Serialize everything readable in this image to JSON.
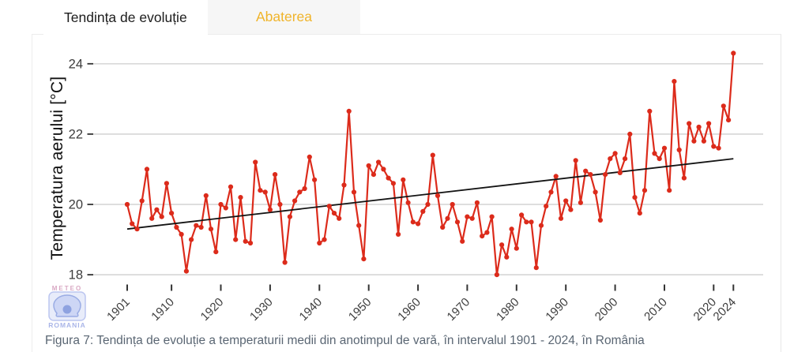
{
  "tabs": [
    {
      "label": "Tendința de evoluție",
      "active": true
    },
    {
      "label": "Abaterea",
      "active": false
    }
  ],
  "caption": {
    "text": "Figura 7: Tendința de evoluție a temperaturii medii din anotimpul de vară, în intervalul 1901 - 2024, în România"
  },
  "logo": {
    "top": "METEO",
    "bottom": "ROMANIA"
  },
  "colors": {
    "series": "#dc2b1b",
    "trend": "#141414",
    "gridline": "#d9d9d9",
    "tick": "#333333",
    "tick_label": "#3d3d3d",
    "tab_active_text": "#1c1c1c",
    "tab_inactive_text": "#f0b42a",
    "caption_text": "#5a6673"
  },
  "chart_data": {
    "type": "line",
    "title": "",
    "xlabel": "",
    "ylabel": "Temperatura aerului [°C]",
    "grid": "horizontal",
    "legend": "none",
    "xlim": [
      1901,
      2024
    ],
    "ylim": [
      17.7,
      24.4
    ],
    "x_ticks": [
      1901,
      1910,
      1920,
      1930,
      1940,
      1950,
      1960,
      1970,
      1980,
      1990,
      2000,
      2010,
      2020,
      2024
    ],
    "y_ticks": [
      18,
      20,
      22,
      24
    ],
    "start_year": 1901,
    "values": [
      20.0,
      19.45,
      19.3,
      20.1,
      21.0,
      19.6,
      19.85,
      19.65,
      20.6,
      19.75,
      19.35,
      19.15,
      18.1,
      19.0,
      19.4,
      19.35,
      20.25,
      19.3,
      18.65,
      20.0,
      19.9,
      20.5,
      19.0,
      20.2,
      18.95,
      18.9,
      21.2,
      20.4,
      20.35,
      19.85,
      20.85,
      20.0,
      18.35,
      19.65,
      20.1,
      20.35,
      20.45,
      21.35,
      20.7,
      18.9,
      19.0,
      19.95,
      19.75,
      19.6,
      20.55,
      22.65,
      20.35,
      19.4,
      18.45,
      21.1,
      20.85,
      21.2,
      21.0,
      20.75,
      20.6,
      19.15,
      20.7,
      20.05,
      19.5,
      19.45,
      19.8,
      20.0,
      21.4,
      20.25,
      19.35,
      19.6,
      20.0,
      19.5,
      18.95,
      19.65,
      19.6,
      20.05,
      19.1,
      19.2,
      19.65,
      18.0,
      18.85,
      18.5,
      19.3,
      18.75,
      19.7,
      19.5,
      19.5,
      18.2,
      19.4,
      19.95,
      20.35,
      20.8,
      19.6,
      20.1,
      19.85,
      21.25,
      20.05,
      20.95,
      20.85,
      20.35,
      19.55,
      20.85,
      21.3,
      21.45,
      20.9,
      21.3,
      22.0,
      20.2,
      19.75,
      20.4,
      22.65,
      21.45,
      21.3,
      21.6,
      20.4,
      23.5,
      21.55,
      20.75,
      22.3,
      21.8,
      22.2,
      21.8,
      22.3,
      21.65,
      21.6,
      22.8,
      22.4,
      24.3
    ],
    "trend": {
      "x": [
        1901,
        2024
      ],
      "y": [
        19.3,
        21.3
      ]
    }
  }
}
